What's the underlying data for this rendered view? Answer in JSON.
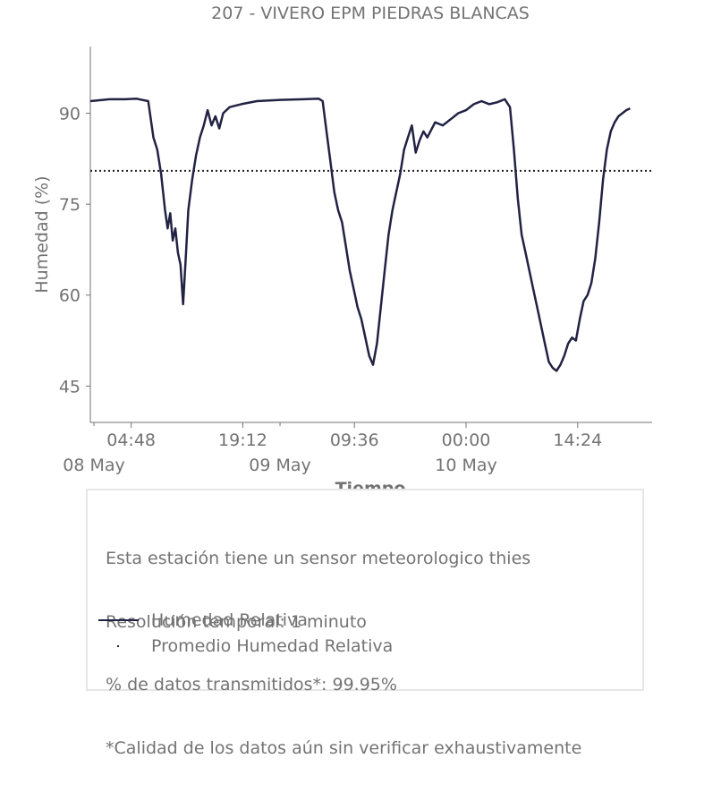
{
  "chart_data": {
    "type": "line",
    "title": "207 - VIVERO EPM PIEDRAS BLANCAS",
    "xlabel": "Tiempo",
    "ylabel": "Humedad (%)",
    "ylim": [
      39,
      101
    ],
    "xlim": [
      "2024-05-07T23:32",
      "2024-05-11T00:00"
    ],
    "x_ticks": [
      {
        "label": "04:48",
        "sublabel": "08 May"
      },
      {
        "label": "19:12",
        "sublabel": "09 May"
      },
      {
        "label": "09:36",
        "sublabel": ""
      },
      {
        "label": "00:00",
        "sublabel": "10 May"
      },
      {
        "label": "14:24",
        "sublabel": ""
      }
    ],
    "y_ticks": [
      45,
      60,
      75,
      90
    ],
    "grid": false,
    "average": 80.5,
    "series": [
      {
        "name": "Humedad Relativa",
        "color": "#222244",
        "points": [
          [
            "2024-05-07T23:32",
            92.0
          ],
          [
            "2024-05-08T02:00",
            92.3
          ],
          [
            "2024-05-08T04:00",
            92.3
          ],
          [
            "2024-05-08T05:30",
            92.4
          ],
          [
            "2024-05-08T07:00",
            92.0
          ],
          [
            "2024-05-08T07:40",
            86.0
          ],
          [
            "2024-05-08T08:10",
            84.0
          ],
          [
            "2024-05-08T08:40",
            80.0
          ],
          [
            "2024-05-08T09:10",
            74.0
          ],
          [
            "2024-05-08T09:30",
            71.0
          ],
          [
            "2024-05-08T09:50",
            73.5
          ],
          [
            "2024-05-08T10:10",
            69.0
          ],
          [
            "2024-05-08T10:30",
            71.0
          ],
          [
            "2024-05-08T10:50",
            67.0
          ],
          [
            "2024-05-08T11:10",
            65.0
          ],
          [
            "2024-05-08T11:30",
            58.5
          ],
          [
            "2024-05-08T11:50",
            66.0
          ],
          [
            "2024-05-08T12:10",
            74.0
          ],
          [
            "2024-05-08T12:40",
            79.0
          ],
          [
            "2024-05-08T13:10",
            83.0
          ],
          [
            "2024-05-08T13:40",
            86.0
          ],
          [
            "2024-05-08T14:10",
            88.0
          ],
          [
            "2024-05-08T14:40",
            90.5
          ],
          [
            "2024-05-08T15:10",
            88.0
          ],
          [
            "2024-05-08T15:40",
            89.5
          ],
          [
            "2024-05-08T16:10",
            87.5
          ],
          [
            "2024-05-08T16:40",
            90.0
          ],
          [
            "2024-05-08T17:30",
            91.0
          ],
          [
            "2024-05-08T19:00",
            91.5
          ],
          [
            "2024-05-08T21:00",
            92.0
          ],
          [
            "2024-05-09T00:00",
            92.2
          ],
          [
            "2024-05-09T03:00",
            92.3
          ],
          [
            "2024-05-09T05:00",
            92.4
          ],
          [
            "2024-05-09T05:30",
            92.0
          ],
          [
            "2024-05-09T06:00",
            87.0
          ],
          [
            "2024-05-09T06:30",
            82.0
          ],
          [
            "2024-05-09T07:00",
            77.0
          ],
          [
            "2024-05-09T07:30",
            74.0
          ],
          [
            "2024-05-09T08:00",
            72.0
          ],
          [
            "2024-05-09T08:30",
            68.0
          ],
          [
            "2024-05-09T09:00",
            64.0
          ],
          [
            "2024-05-09T09:30",
            61.0
          ],
          [
            "2024-05-09T10:00",
            58.0
          ],
          [
            "2024-05-09T10:30",
            56.0
          ],
          [
            "2024-05-09T11:00",
            53.0
          ],
          [
            "2024-05-09T11:30",
            50.0
          ],
          [
            "2024-05-09T12:00",
            48.5
          ],
          [
            "2024-05-09T12:30",
            52.0
          ],
          [
            "2024-05-09T13:00",
            58.0
          ],
          [
            "2024-05-09T13:30",
            64.0
          ],
          [
            "2024-05-09T14:00",
            70.0
          ],
          [
            "2024-05-09T14:30",
            74.0
          ],
          [
            "2024-05-09T15:00",
            77.0
          ],
          [
            "2024-05-09T15:30",
            80.0
          ],
          [
            "2024-05-09T16:00",
            84.0
          ],
          [
            "2024-05-09T16:30",
            86.0
          ],
          [
            "2024-05-09T17:00",
            88.0
          ],
          [
            "2024-05-09T17:30",
            83.5
          ],
          [
            "2024-05-09T18:00",
            85.5
          ],
          [
            "2024-05-09T18:30",
            87.0
          ],
          [
            "2024-05-09T19:00",
            86.0
          ],
          [
            "2024-05-09T20:00",
            88.5
          ],
          [
            "2024-05-09T21:00",
            88.0
          ],
          [
            "2024-05-09T22:00",
            89.0
          ],
          [
            "2024-05-09T23:00",
            90.0
          ],
          [
            "2024-05-10T00:00",
            90.5
          ],
          [
            "2024-05-10T01:00",
            91.5
          ],
          [
            "2024-05-10T02:00",
            92.0
          ],
          [
            "2024-05-10T03:00",
            91.5
          ],
          [
            "2024-05-10T04:00",
            91.8
          ],
          [
            "2024-05-10T05:00",
            92.3
          ],
          [
            "2024-05-10T05:40",
            91.0
          ],
          [
            "2024-05-10T06:10",
            84.0
          ],
          [
            "2024-05-10T06:40",
            76.0
          ],
          [
            "2024-05-10T07:10",
            70.0
          ],
          [
            "2024-05-10T07:40",
            67.0
          ],
          [
            "2024-05-10T08:10",
            64.0
          ],
          [
            "2024-05-10T08:40",
            61.0
          ],
          [
            "2024-05-10T09:10",
            58.0
          ],
          [
            "2024-05-10T09:40",
            55.0
          ],
          [
            "2024-05-10T10:10",
            52.0
          ],
          [
            "2024-05-10T10:40",
            49.0
          ],
          [
            "2024-05-10T11:10",
            48.0
          ],
          [
            "2024-05-10T11:40",
            47.5
          ],
          [
            "2024-05-10T12:10",
            48.5
          ],
          [
            "2024-05-10T12:40",
            50.0
          ],
          [
            "2024-05-10T13:10",
            52.0
          ],
          [
            "2024-05-10T13:40",
            53.0
          ],
          [
            "2024-05-10T14:10",
            52.5
          ],
          [
            "2024-05-10T14:40",
            56.0
          ],
          [
            "2024-05-10T15:10",
            59.0
          ],
          [
            "2024-05-10T15:40",
            60.0
          ],
          [
            "2024-05-10T16:10",
            62.0
          ],
          [
            "2024-05-10T16:40",
            66.0
          ],
          [
            "2024-05-10T17:10",
            72.0
          ],
          [
            "2024-05-10T17:40",
            79.0
          ],
          [
            "2024-05-10T18:10",
            84.0
          ],
          [
            "2024-05-10T18:40",
            87.0
          ],
          [
            "2024-05-10T19:10",
            88.5
          ],
          [
            "2024-05-10T19:40",
            89.5
          ],
          [
            "2024-05-10T20:10",
            90.0
          ],
          [
            "2024-05-10T20:40",
            90.5
          ],
          [
            "2024-05-10T21:10",
            90.8
          ]
        ]
      }
    ]
  },
  "info": {
    "lines": [
      "Esta estación tiene un sensor meteorologico thies",
      "Resolución temporal: 1 minuto",
      "% de datos transmitidos*: 99.95%",
      "*Calidad de los datos aún sin verificar exhaustivamente"
    ],
    "legend": [
      {
        "label": "Humedad Relativa",
        "style": "solid",
        "color": "#222244"
      },
      {
        "label": "Promedio Humedad Relativa",
        "style": "dotted",
        "color": "#222222"
      }
    ]
  }
}
